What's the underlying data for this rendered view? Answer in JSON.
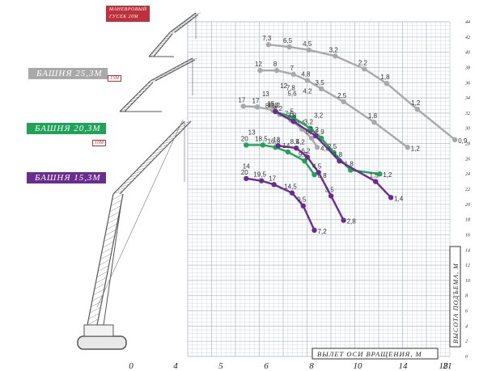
{
  "colors": {
    "gray": "#a9a9a9",
    "green": "#1fa357",
    "purple": "#6a2c91",
    "red": "#c0303a",
    "grid": "#c6cfdb"
  },
  "legend": {
    "jib_line1": "МАНЕВРОВЫЙ",
    "jib_line2": "ГУСЕК 20М",
    "tower25": "БАШНЯ 25,3М",
    "jib15": "15М",
    "tower20": "БАШНЯ 20,3М",
    "jib10": "10М",
    "tower15": "БАШНЯ 15,3М"
  },
  "chart_data": {
    "type": "line",
    "xlabel": "ВЫЛЕТ ОСИ ВРАЩЕНИЯ, М",
    "ylabel": "ВЫСОТА ПОДЪЕМА, М",
    "x_ticks": [
      "0",
      "4",
      "5",
      "6",
      "8",
      "10",
      "14",
      "18",
      "21"
    ],
    "y_ticks": [
      "0",
      "2",
      "4",
      "6",
      "8",
      "10",
      "12",
      "14",
      "16",
      "18",
      "20",
      "22",
      "24",
      "26",
      "28",
      "30",
      "32",
      "34",
      "36",
      "38",
      "40",
      "42",
      "44"
    ],
    "ylim": [
      0,
      44
    ],
    "grid": true,
    "series": [
      {
        "color": "gray",
        "points": [
          {
            "x": 5.8,
            "y": 41.0,
            "label": "7,3"
          },
          {
            "x": 7.3,
            "y": 40.7,
            "label": "6,5"
          },
          {
            "x": 8.7,
            "y": 40.3,
            "label": "4,5"
          },
          {
            "x": 10.6,
            "y": 39.5,
            "label": "3,2"
          },
          {
            "x": 12.7,
            "y": 37.8,
            "label": "2,2"
          },
          {
            "x": 14.3,
            "y": 35.9,
            "label": "1,8"
          },
          {
            "x": 16.5,
            "y": 32.5,
            "label": "1,2"
          },
          {
            "x": 19.2,
            "y": 28.5,
            "label": "0,9"
          }
        ]
      },
      {
        "color": "gray",
        "points": [
          {
            "x": 5.2,
            "y": 37.6,
            "label": "12"
          },
          {
            "x": 6.4,
            "y": 37.6,
            "label": "8"
          },
          {
            "x": 7.6,
            "y": 37.1,
            "label": "7"
          },
          {
            "x": 8.6,
            "y": 36.3,
            "label": "4,8"
          },
          {
            "x": 9.6,
            "y": 35.2,
            "label": "3,5"
          },
          {
            "x": 11.2,
            "y": 33.5,
            "label": "2,5"
          },
          {
            "x": 13.4,
            "y": 30.8,
            "label": "1,8"
          },
          {
            "x": 15.8,
            "y": 27.5,
            "label": "1,2"
          }
        ]
      },
      {
        "color": "gray",
        "points": [
          {
            "x": 4.0,
            "y": 32.9,
            "label": "17"
          },
          {
            "x": 5.0,
            "y": 32.8,
            "label": "17"
          },
          {
            "x": 6.1,
            "y": 32.4,
            "label": "15"
          },
          {
            "x": 6.6,
            "y": 31.8,
            "label": "8,2"
          },
          {
            "x": 7.4,
            "y": 31.1,
            "label": "7,5"
          },
          {
            "x": 8.2,
            "y": 29.9,
            "label": "6,4"
          },
          {
            "x": 8.9,
            "y": 28.7,
            "label": "5,8"
          },
          {
            "x": 9.3,
            "y": 27.5,
            "label": "4,8"
          }
        ]
      },
      {
        "color": "green",
        "points": [
          {
            "x": 6.3,
            "y": 32.2,
            "label": "13,2"
          },
          {
            "x": 7.6,
            "y": 31.4,
            "label": "5"
          },
          {
            "x": 8.8,
            "y": 30.0,
            "label": "3,2"
          },
          {
            "x": 9.6,
            "y": 28.7,
            "label": "2,9"
          },
          {
            "x": 10.5,
            "y": 26.8,
            "label": "2,5"
          },
          {
            "x": 11.7,
            "y": 24.5,
            "label": "1,8"
          },
          {
            "x": 13.8,
            "y": 24.0,
            "label": "1,2"
          }
        ]
      },
      {
        "color": "green",
        "points": [
          {
            "x": 4.2,
            "y": 27.8,
            "label": "20"
          },
          {
            "x": 5.4,
            "y": 27.8,
            "label": "18,5"
          },
          {
            "x": 6.3,
            "y": 27.5,
            "label": "16,5"
          },
          {
            "x": 7.2,
            "y": 26.9,
            "label": "14"
          },
          {
            "x": 8.4,
            "y": 25.7,
            "label": "9,2"
          },
          {
            "x": 9.1,
            "y": 23.9,
            "label": "6,8"
          }
        ]
      },
      {
        "color": "purple",
        "points": [
          {
            "x": 6.3,
            "y": 32.2,
            "label": "8,8"
          },
          {
            "x": 7.6,
            "y": 30.9,
            "label": "3,8"
          },
          {
            "x": 9.2,
            "y": 29.0,
            "label": "2,2"
          },
          {
            "x": 10.9,
            "y": 25.7,
            "label": "1,8"
          },
          {
            "x": 13.5,
            "y": 23.0,
            "label": "1,5"
          },
          {
            "x": 14.6,
            "y": 20.9,
            "label": "1,4"
          }
        ]
      },
      {
        "color": "purple",
        "points": [
          {
            "x": 6.5,
            "y": 27.7,
            "label": "13"
          },
          {
            "x": 7.8,
            "y": 27.4,
            "label": "8,5"
          },
          {
            "x": 8.6,
            "y": 26.2,
            "label": "6,2"
          },
          {
            "x": 9.4,
            "y": 24.2,
            "label": "4,5"
          },
          {
            "x": 10.3,
            "y": 21.1,
            "label": "3,5"
          },
          {
            "x": 11.2,
            "y": 17.9,
            "label": "2,8"
          }
        ]
      },
      {
        "color": "purple",
        "points": [
          {
            "x": 4.2,
            "y": 23.4,
            "label": "20"
          },
          {
            "x": 5.3,
            "y": 23.1,
            "label": "19,5"
          },
          {
            "x": 6.2,
            "y": 22.6,
            "label": "17"
          },
          {
            "x": 7.5,
            "y": 21.5,
            "label": "14,5"
          },
          {
            "x": 8.3,
            "y": 19.8,
            "label": "9,5"
          },
          {
            "x": 9.1,
            "y": 16.6,
            "label": "7,2"
          }
        ]
      }
    ],
    "extra_labels": [
      {
        "x": 6.9,
        "y": 35.3,
        "text": "12"
      },
      {
        "x": 7.4,
        "y": 35.0,
        "text": "7,8"
      },
      {
        "x": 7.5,
        "y": 34.3,
        "text": "5,6"
      },
      {
        "x": 8.6,
        "y": 34.6,
        "text": "4,2"
      },
      {
        "x": 5.6,
        "y": 34.2,
        "text": "13"
      },
      {
        "x": 5.7,
        "y": 32.7,
        "text": "8"
      },
      {
        "x": 9.4,
        "y": 31.4,
        "text": "3,2"
      },
      {
        "x": 8.1,
        "y": 27.9,
        "text": "4,2"
      },
      {
        "x": 4.6,
        "y": 29.2,
        "text": "13"
      },
      {
        "x": 4.2,
        "y": 24.7,
        "text": "14"
      }
    ]
  }
}
